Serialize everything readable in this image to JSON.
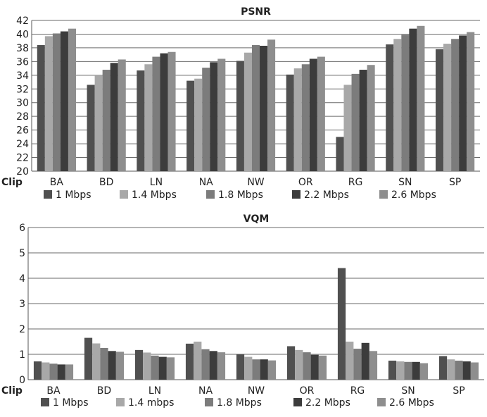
{
  "chart_data": [
    {
      "type": "bar",
      "title": "PSNR",
      "category_axis_label": "Clip",
      "categories": [
        "BA",
        "BD",
        "LN",
        "NA",
        "NW",
        "OR",
        "RG",
        "SN",
        "SP"
      ],
      "ylim": [
        20,
        42
      ],
      "yticks": [
        20,
        22,
        24,
        26,
        28,
        30,
        32,
        34,
        36,
        38,
        40,
        42
      ],
      "grid": true,
      "legend_position": "bottom",
      "series": [
        {
          "name": "1 Mbps",
          "color": "#505050",
          "values": [
            38.4,
            32.6,
            34.7,
            33.2,
            36.1,
            34.1,
            25.0,
            38.5,
            37.8
          ]
        },
        {
          "name": "1.4 Mbps",
          "color": "#a8a8a8",
          "values": [
            39.7,
            34.0,
            35.6,
            33.5,
            37.3,
            35.0,
            32.6,
            39.3,
            38.6
          ]
        },
        {
          "name": "1.8 Mbps",
          "color": "#7c7c7c",
          "values": [
            40.1,
            34.8,
            36.7,
            35.1,
            38.4,
            35.6,
            34.2,
            39.9,
            39.3
          ]
        },
        {
          "name": "2.2 Mbps",
          "color": "#3c3c3c",
          "values": [
            40.4,
            35.8,
            37.2,
            35.9,
            38.3,
            36.4,
            34.8,
            40.8,
            39.8
          ]
        },
        {
          "name": "2.6 Mbps",
          "color": "#8e8e8e",
          "values": [
            40.8,
            36.3,
            37.4,
            36.4,
            39.2,
            36.7,
            35.5,
            41.2,
            40.3
          ]
        }
      ]
    },
    {
      "type": "bar",
      "title": "VQM",
      "category_axis_label": "Clip",
      "categories": [
        "BA",
        "BD",
        "LN",
        "NA",
        "NW",
        "OR",
        "RG",
        "SN",
        "SP"
      ],
      "ylim": [
        0,
        6
      ],
      "yticks": [
        0,
        1,
        2,
        3,
        4,
        5,
        6
      ],
      "grid": true,
      "legend_position": "bottom",
      "series": [
        {
          "name": "1 Mbps",
          "color": "#505050",
          "values": [
            0.72,
            1.65,
            1.17,
            1.42,
            1.0,
            1.32,
            4.4,
            0.75,
            0.93
          ]
        },
        {
          "name": "1.4 mbps",
          "color": "#a8a8a8",
          "values": [
            0.68,
            1.43,
            1.07,
            1.5,
            0.9,
            1.17,
            1.5,
            0.72,
            0.8
          ]
        },
        {
          "name": "1.8 Mbps",
          "color": "#7c7c7c",
          "values": [
            0.63,
            1.25,
            0.95,
            1.2,
            0.8,
            1.08,
            1.22,
            0.7,
            0.75
          ]
        },
        {
          "name": "2.2 Mbps",
          "color": "#3c3c3c",
          "values": [
            0.6,
            1.13,
            0.9,
            1.13,
            0.8,
            0.98,
            1.45,
            0.7,
            0.72
          ]
        },
        {
          "name": "2.6 Mbps",
          "color": "#8e8e8e",
          "values": [
            0.6,
            1.1,
            0.88,
            1.08,
            0.76,
            0.95,
            1.13,
            0.65,
            0.68
          ]
        }
      ]
    }
  ]
}
